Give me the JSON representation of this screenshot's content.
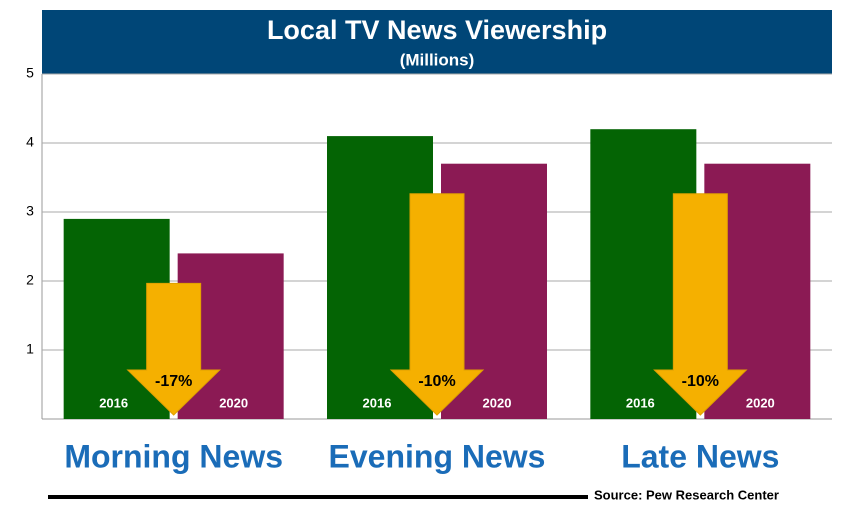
{
  "chart_data": {
    "type": "bar",
    "title": "Local TV News Viewership",
    "subtitle": "(Millions)",
    "categories": [
      "Morning News",
      "Evening News",
      "Late News"
    ],
    "series": [
      {
        "name": "2016",
        "color": "#046404",
        "values": [
          2.9,
          4.1,
          4.2
        ]
      },
      {
        "name": "2020",
        "color": "#8b1a54",
        "values": [
          2.4,
          3.7,
          3.7
        ]
      }
    ],
    "change_labels": [
      "-17%",
      "-10%",
      "-10%"
    ],
    "ylim": [
      0,
      5
    ],
    "yticks": [
      1,
      2,
      3,
      4,
      5
    ],
    "grid": true,
    "source": "Source: Pew Research Center"
  }
}
